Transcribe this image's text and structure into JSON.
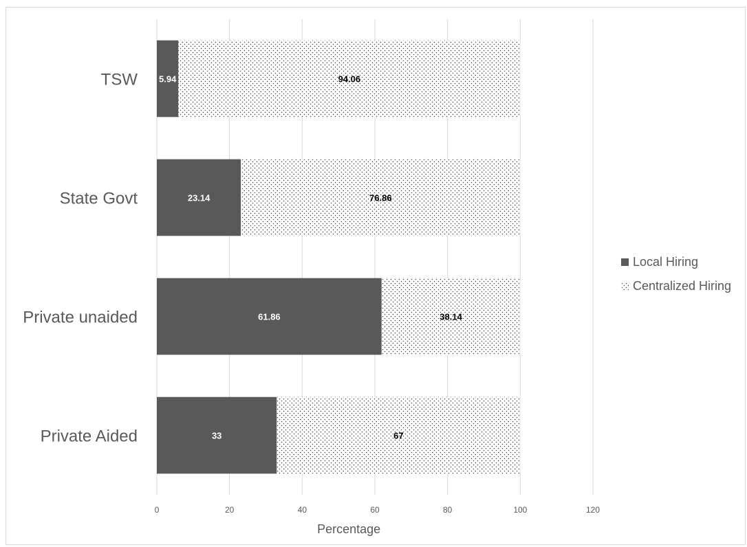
{
  "chart_data": {
    "type": "bar",
    "orientation": "horizontal",
    "stacked": true,
    "categories": [
      "TSW",
      "State Govt",
      "Private unaided",
      "Private Aided"
    ],
    "series": [
      {
        "name": "Local Hiring",
        "values": [
          5.94,
          23.14,
          61.86,
          33
        ],
        "color": "#595959",
        "pattern": "solid"
      },
      {
        "name": "Centralized Hiring",
        "values": [
          94.06,
          76.86,
          38.14,
          67
        ],
        "color": "#ffffff",
        "pattern": "dotted"
      }
    ],
    "data_labels": [
      [
        "5.94",
        "23.14",
        "61.86",
        "33"
      ],
      [
        "94.06",
        "76.86",
        "38.14",
        "67"
      ]
    ],
    "xlim": [
      0,
      120
    ],
    "xticks": [
      "0",
      "20",
      "40",
      "60",
      "80",
      "100",
      "120"
    ],
    "xlabel": "Percentage",
    "ylabel": "",
    "title": "",
    "grid": "vertical",
    "legend": "right"
  }
}
